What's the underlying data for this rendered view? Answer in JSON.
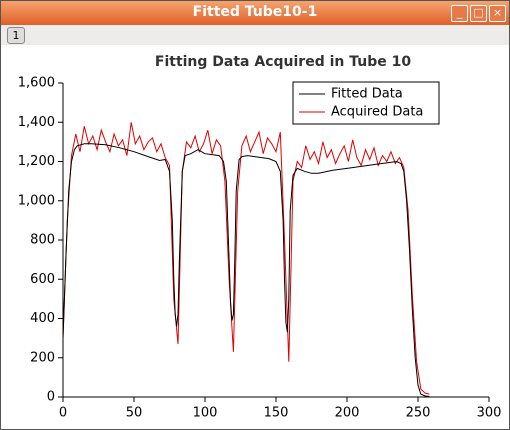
{
  "window_title": "Fitted Tube10-1",
  "toolbar_button": "1",
  "chart_data": {
    "type": "line",
    "title": "Fitting Data Acquired in Tube 10",
    "xlim": [
      0,
      300
    ],
    "xticks": [
      0,
      50,
      100,
      150,
      200,
      250,
      300
    ],
    "ylim": [
      0,
      1600
    ],
    "yticks": [
      0,
      200,
      400,
      600,
      800,
      {
        "value": 1000,
        "label": "1,000"
      },
      {
        "value": 1200,
        "label": "1,200"
      },
      {
        "value": 1400,
        "label": "1,400"
      },
      {
        "value": 1600,
        "label": "1,600"
      }
    ],
    "legend": "upper right",
    "series": [
      {
        "name": "Fitted Data",
        "color": "#000000",
        "x": [
          0,
          2,
          4,
          6,
          8,
          10,
          15,
          20,
          30,
          40,
          50,
          60,
          68,
          72,
          75,
          77,
          78,
          79,
          80,
          81,
          82,
          84,
          86,
          90,
          95,
          100,
          105,
          110,
          113,
          115,
          117,
          118,
          119,
          120,
          121,
          122,
          124,
          126,
          130,
          135,
          140,
          145,
          150,
          153,
          155,
          156,
          157,
          158,
          159,
          160,
          162,
          165,
          170,
          175,
          180,
          190,
          200,
          210,
          220,
          230,
          235,
          238,
          240,
          242,
          244,
          246,
          248,
          250,
          252,
          255,
          258
        ],
        "values": [
          300,
          700,
          1050,
          1200,
          1260,
          1280,
          1290,
          1290,
          1285,
          1270,
          1250,
          1225,
          1205,
          1210,
          1150,
          900,
          600,
          420,
          360,
          420,
          700,
          1150,
          1230,
          1240,
          1260,
          1240,
          1235,
          1230,
          1200,
          1100,
          700,
          480,
          390,
          420,
          700,
          1050,
          1210,
          1225,
          1230,
          1225,
          1220,
          1215,
          1200,
          1150,
          900,
          600,
          380,
          330,
          500,
          950,
          1130,
          1165,
          1150,
          1140,
          1140,
          1155,
          1165,
          1175,
          1185,
          1195,
          1200,
          1190,
          1150,
          1000,
          750,
          450,
          200,
          60,
          15,
          5,
          3
        ]
      },
      {
        "name": "Acquired Data",
        "color": "#e00000",
        "x": [
          0,
          3,
          6,
          9,
          12,
          15,
          18,
          21,
          24,
          27,
          30,
          33,
          36,
          39,
          42,
          45,
          48,
          51,
          54,
          57,
          60,
          63,
          66,
          69,
          72,
          75,
          78,
          81,
          84,
          87,
          90,
          93,
          96,
          99,
          102,
          105,
          108,
          111,
          114,
          117,
          120,
          123,
          126,
          129,
          132,
          135,
          138,
          141,
          144,
          147,
          150,
          153,
          156,
          159,
          162,
          165,
          168,
          171,
          174,
          177,
          180,
          183,
          186,
          189,
          192,
          195,
          198,
          201,
          204,
          207,
          210,
          213,
          216,
          219,
          222,
          225,
          228,
          231,
          234,
          237,
          240,
          243,
          246,
          249,
          252,
          255,
          258
        ],
        "values": [
          300,
          900,
          1230,
          1340,
          1250,
          1380,
          1290,
          1330,
          1260,
          1360,
          1300,
          1250,
          1340,
          1280,
          1310,
          1230,
          1400,
          1290,
          1330,
          1260,
          1300,
          1320,
          1250,
          1290,
          1220,
          1180,
          500,
          270,
          1150,
          1300,
          1270,
          1330,
          1250,
          1290,
          1360,
          1240,
          1310,
          1280,
          1100,
          600,
          230,
          1050,
          1280,
          1330,
          1250,
          1300,
          1350,
          1240,
          1320,
          1290,
          1250,
          1350,
          800,
          180,
          1100,
          1200,
          1170,
          1280,
          1210,
          1250,
          1190,
          1300,
          1220,
          1260,
          1190,
          1240,
          1280,
          1200,
          1310,
          1220,
          1180,
          1260,
          1210,
          1270,
          1180,
          1230,
          1200,
          1250,
          1190,
          1220,
          1170,
          950,
          520,
          180,
          40,
          20,
          15
        ]
      }
    ]
  }
}
